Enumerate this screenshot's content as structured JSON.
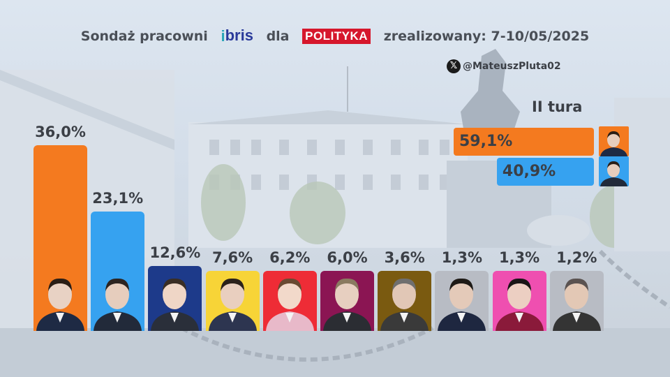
{
  "chart_data": {
    "type": "bar",
    "title_prefix": "Sondaż pracowni",
    "title_middle": "dla",
    "title_suffix": "zrealizowany: 7-10/05/2025",
    "author_handle": "@MateuszPluta02",
    "ylim": [
      0,
      36
    ],
    "values": [
      36.0,
      23.1,
      12.6,
      7.6,
      6.2,
      6.0,
      3.6,
      1.3,
      1.3,
      1.2
    ],
    "labels": [
      "36,0%",
      "23,1%",
      "12,6%",
      "7,6%",
      "6,2%",
      "6,0%",
      "3,6%",
      "1,3%",
      "1,3%",
      "1,2%"
    ],
    "colors": [
      "#f47a1f",
      "#36a2f0",
      "#1d3a8a",
      "#f7d437",
      "#ee2c36",
      "#8b1553",
      "#7a5a10",
      "#b8bcc4",
      "#ef4fb0",
      "#b8bcc4"
    ],
    "second_round": {
      "label": "II tura",
      "values": [
        59.1,
        40.9
      ],
      "labels": [
        "59,1%",
        "40,9%"
      ],
      "colors": [
        "#f47a1f",
        "#36a2f0"
      ]
    }
  }
}
